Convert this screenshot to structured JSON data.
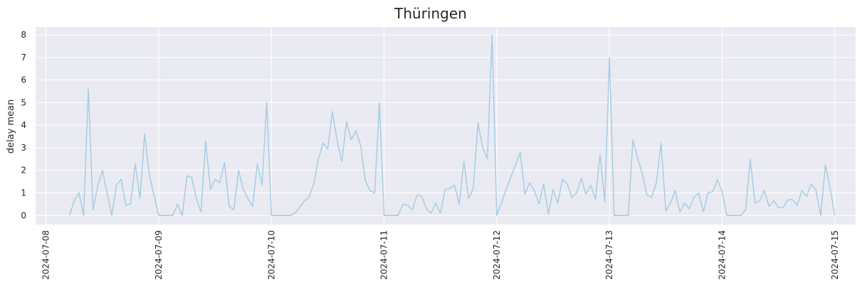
{
  "chart_data": {
    "type": "line",
    "title": "Thüringen",
    "xlabel": "",
    "ylabel": "delay mean",
    "xlim": [
      "2024-07-07T21:46",
      "2024-07-15T04:26"
    ],
    "ylim": [
      -0.4,
      8.35
    ],
    "grid": true,
    "line_color": "#a6cee3",
    "y_ticks": [
      "0",
      "1",
      "2",
      "3",
      "4",
      "5",
      "6",
      "7",
      "8"
    ],
    "x_ticks": [
      "2024-07-08",
      "2024-07-09",
      "2024-07-10",
      "2024-07-11",
      "2024-07-12",
      "2024-07-13",
      "2024-07-14",
      "2024-07-15"
    ],
    "x_start": "2024-07-08T05:00",
    "x_step_hours": 1,
    "series": [
      {
        "values": [
          0,
          0.65,
          1.0,
          0,
          5.6,
          0.25,
          1.3,
          2.0,
          1.0,
          0,
          1.35,
          1.6,
          0.45,
          0.5,
          2.3,
          0.75,
          3.6,
          1.8,
          0.9,
          0,
          0,
          0,
          0,
          0.5,
          0,
          1.75,
          1.7,
          0.75,
          0.15,
          3.3,
          1.15,
          1.6,
          1.45,
          2.35,
          0.4,
          0.25,
          2.0,
          1.15,
          0.75,
          0.4,
          2.3,
          1.35,
          5.0,
          0,
          0,
          0,
          0,
          0,
          0.1,
          0.35,
          0.65,
          0.8,
          1.4,
          2.5,
          3.2,
          2.95,
          4.6,
          3.3,
          2.4,
          4.15,
          3.35,
          3.75,
          3.1,
          1.55,
          1.1,
          1.0,
          5.0,
          0,
          0,
          0,
          0,
          0.5,
          0.45,
          0.25,
          0.9,
          0.85,
          0.3,
          0.1,
          0.55,
          0.1,
          1.15,
          1.2,
          1.35,
          0.5,
          2.4,
          0.75,
          1.2,
          4.1,
          3.0,
          2.5,
          8.0,
          0,
          0.55,
          1.15,
          1.7,
          2.25,
          2.8,
          0.95,
          1.45,
          1.1,
          0.5,
          1.4,
          0.05,
          1.15,
          0.55,
          1.6,
          1.4,
          0.8,
          1.0,
          1.65,
          0.95,
          1.35,
          0.7,
          2.7,
          0.6,
          7.0,
          0,
          0,
          0,
          0,
          3.35,
          2.55,
          1.85,
          0.9,
          0.8,
          1.45,
          3.2,
          0.2,
          0.55,
          1.1,
          0.15,
          0.55,
          0.3,
          0.8,
          1.0,
          0.15,
          1.0,
          1.05,
          1.6,
          1.05,
          0,
          0,
          0,
          0,
          0.25,
          2.5,
          0.55,
          0.65,
          1.1,
          0.4,
          0.65,
          0.35,
          0.35,
          0.7,
          0.7,
          0.45,
          1.1,
          0.85,
          1.4,
          1.1,
          0,
          2.25,
          1.2,
          0
        ]
      }
    ]
  }
}
